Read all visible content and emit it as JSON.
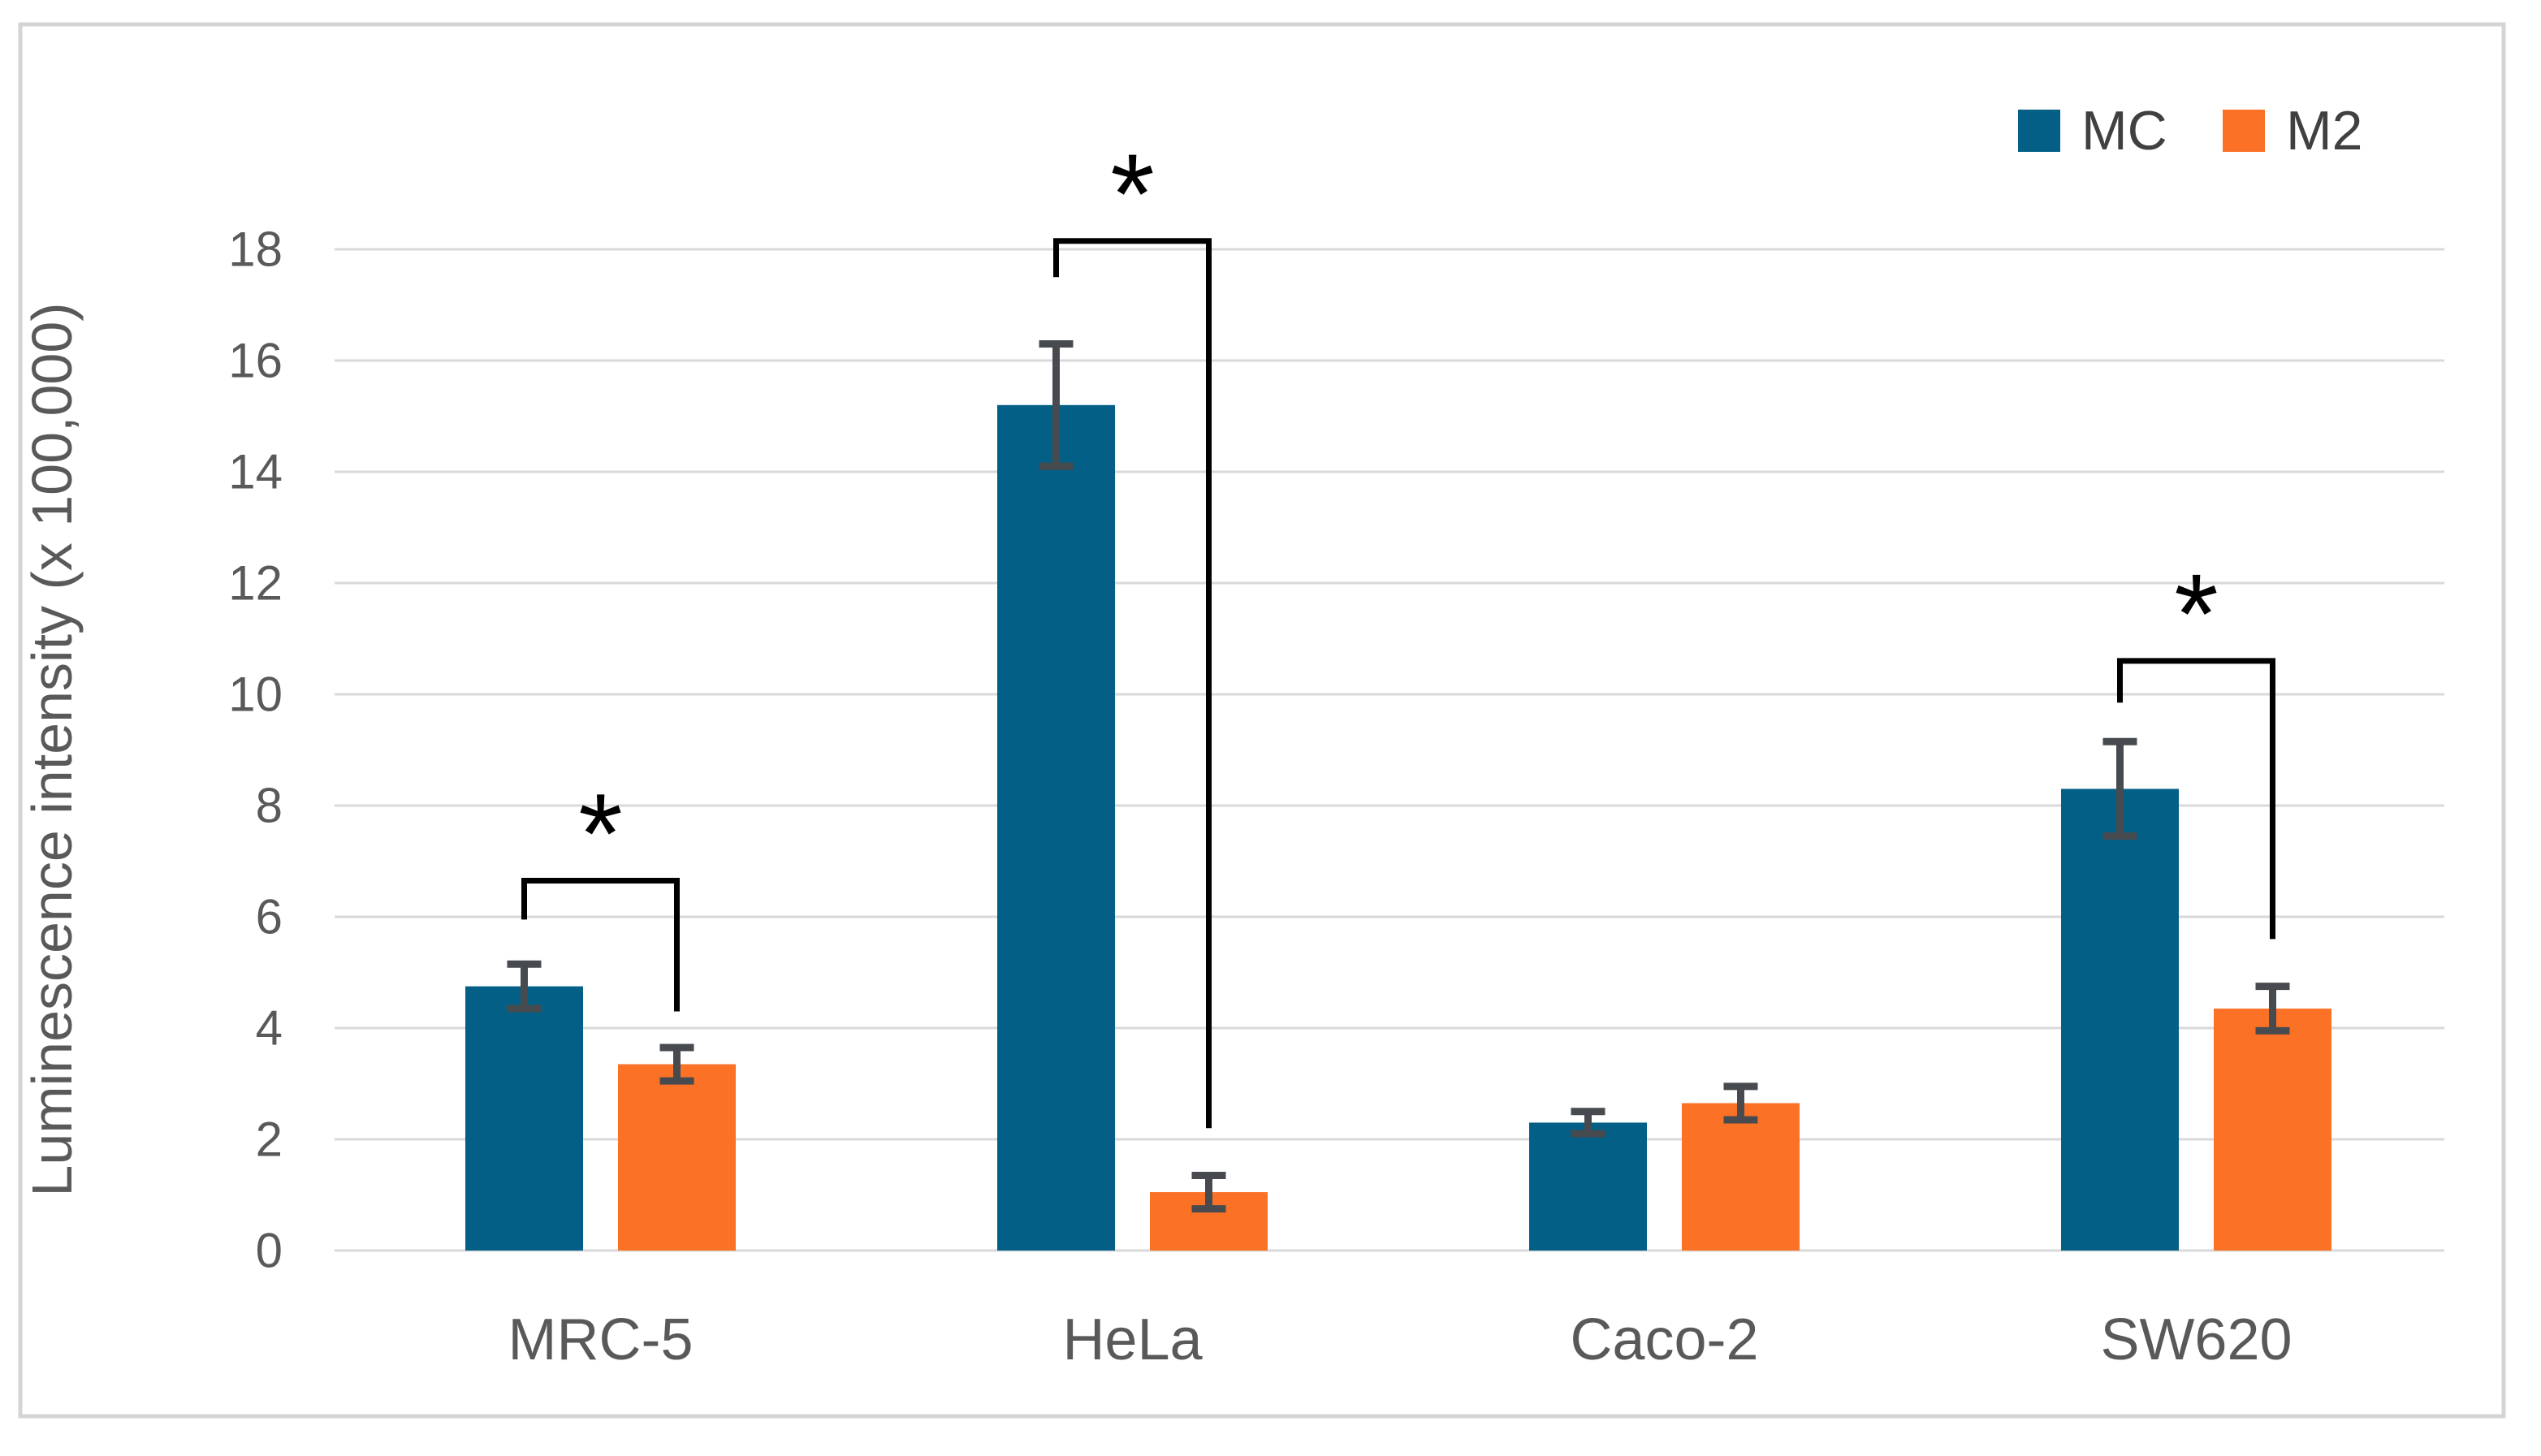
{
  "figure": {
    "border_color": "#d4d4d4",
    "background": "#ffffff"
  },
  "legend": {
    "position": "top-right",
    "text_color": "#404040",
    "items": [
      {
        "label": "MC",
        "color": "#045f86"
      },
      {
        "label": "M2",
        "color": "#fb7126"
      }
    ]
  },
  "chart_data": {
    "type": "bar",
    "title": "",
    "xlabel": "",
    "ylabel": "Luminescence intensity (x 100,000)",
    "categories": [
      "MRC-5",
      "HeLa",
      "Caco-2",
      "SW620"
    ],
    "series": [
      {
        "name": "MC",
        "color": "#045f86",
        "values": [
          4.75,
          15.2,
          2.3,
          8.3
        ],
        "errors": [
          0.4,
          1.1,
          0.2,
          0.85
        ]
      },
      {
        "name": "M2",
        "color": "#fb7126",
        "values": [
          3.35,
          1.05,
          2.65,
          4.35
        ],
        "errors": [
          0.3,
          0.3,
          0.3,
          0.4
        ]
      }
    ],
    "ylim": [
      0,
      18
    ],
    "yticks": [
      0,
      2,
      4,
      6,
      8,
      10,
      12,
      14,
      16,
      18
    ],
    "grid": true,
    "gridline_color": "#d9d9d9",
    "axis_text_color": "#595959",
    "error_bar_color": "#474b50",
    "annotation_color": "#000000",
    "significance": [
      {
        "category": "MRC-5",
        "label": "*",
        "bracket_y": 6.65,
        "left_drop_y": 5.95,
        "right_drop_y": 4.3,
        "star_y": 7.5
      },
      {
        "category": "HeLa",
        "label": "*",
        "bracket_y": 18.15,
        "left_drop_y": 17.5,
        "right_drop_y": 2.2,
        "star_y": 19.0
      },
      {
        "category": "SW620",
        "label": "*",
        "bracket_y": 10.6,
        "left_drop_y": 9.85,
        "right_drop_y": 5.6,
        "star_y": 11.45
      }
    ]
  }
}
